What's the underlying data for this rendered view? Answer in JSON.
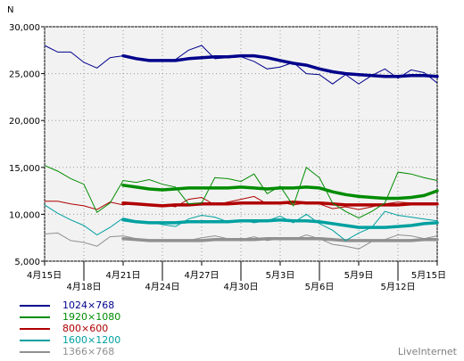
{
  "brand": "LiveInternet",
  "chart_data": {
    "type": "line",
    "ylabel": "N",
    "ylim": [
      5000,
      30000
    ],
    "yticks": [
      "5,000",
      "10,000",
      "15,000",
      "20,000",
      "25,000",
      "30,000"
    ],
    "ytick_values": [
      5000,
      10000,
      15000,
      20000,
      25000,
      30000
    ],
    "xticks": [
      {
        "label": "4月15日",
        "day": 0,
        "row": 1
      },
      {
        "label": "4月18日",
        "day": 3,
        "row": 2
      },
      {
        "label": "4月21日",
        "day": 6,
        "row": 1
      },
      {
        "label": "4月24日",
        "day": 9,
        "row": 2
      },
      {
        "label": "4月27日",
        "day": 12,
        "row": 1
      },
      {
        "label": "4月30日",
        "day": 15,
        "row": 2
      },
      {
        "label": "5月3日",
        "day": 18,
        "row": 1
      },
      {
        "label": "5月6日",
        "day": 21,
        "row": 2
      },
      {
        "label": "5月9日",
        "day": 24,
        "row": 1
      },
      {
        "label": "5月12日",
        "day": 27,
        "row": 2
      },
      {
        "label": "5月15日",
        "day": 30,
        "row": 1
      }
    ],
    "grid": true,
    "legend_position": "bottom-left",
    "series": [
      {
        "name": "1024×768",
        "color": "#00008b",
        "daily": [
          28000,
          27300,
          27300,
          26200,
          25600,
          26700,
          26900,
          26600,
          26400,
          26300,
          26500,
          27500,
          28000,
          26600,
          26700,
          26800,
          26300,
          25500,
          25700,
          26200,
          25000,
          24900,
          23900,
          24900,
          23900,
          24800,
          25500,
          24500,
          25400,
          25100,
          24000
        ],
        "avg_start": 6,
        "avg": [
          26900,
          26600,
          26400,
          26400,
          26400,
          26600,
          26700,
          26800,
          26800,
          26900,
          26900,
          26700,
          26400,
          26100,
          25900,
          25500,
          25200,
          25000,
          24900,
          24800,
          24700,
          24700,
          24800,
          24800,
          24700
        ]
      },
      {
        "name": "1920×1080",
        "color": "#008c00",
        "daily": [
          15200,
          14600,
          13800,
          13200,
          10200,
          11200,
          13600,
          13400,
          13700,
          13200,
          12900,
          11100,
          11200,
          13900,
          13800,
          13500,
          14300,
          12200,
          13000,
          10900,
          15000,
          13900,
          11200,
          10300,
          9600,
          10300,
          11200,
          14500,
          14300,
          13900,
          13600
        ],
        "avg_start": 6,
        "avg": [
          13100,
          12900,
          12700,
          12600,
          12700,
          12800,
          12800,
          12800,
          12800,
          12900,
          12800,
          12700,
          12800,
          12800,
          12900,
          12800,
          12400,
          12100,
          11900,
          11800,
          11700,
          11700,
          11800,
          12000,
          12500
        ]
      },
      {
        "name": "800×600",
        "color": "#b00000",
        "daily": [
          11400,
          11400,
          11100,
          10900,
          10500,
          11300,
          11000,
          11200,
          10900,
          11000,
          10800,
          11600,
          11800,
          11000,
          11300,
          11600,
          11900,
          11100,
          11300,
          11000,
          11200,
          11100,
          10600,
          10800,
          10500,
          10800,
          11100,
          11300,
          11200,
          11000,
          11000
        ],
        "avg_start": 6,
        "avg": [
          11200,
          11100,
          11000,
          10900,
          11000,
          11000,
          11100,
          11100,
          11100,
          11200,
          11200,
          11200,
          11200,
          11300,
          11200,
          11200,
          11100,
          11000,
          11000,
          11000,
          11000,
          11000,
          11100,
          11100,
          11100
        ]
      },
      {
        "name": "1600×1200",
        "color": "#00a0a0",
        "daily": [
          11000,
          10100,
          9400,
          8800,
          7800,
          8600,
          9600,
          9300,
          9200,
          8900,
          8700,
          9500,
          9900,
          9700,
          9200,
          9400,
          9100,
          9300,
          9800,
          9100,
          10000,
          9000,
          8300,
          7200,
          8000,
          8600,
          10300,
          9900,
          9700,
          9500,
          9300
        ],
        "avg_start": 6,
        "avg": [
          9400,
          9200,
          9100,
          9100,
          9100,
          9200,
          9200,
          9200,
          9200,
          9300,
          9300,
          9300,
          9400,
          9300,
          9300,
          9200,
          9000,
          8800,
          8600,
          8600,
          8600,
          8700,
          8800,
          9000,
          9100
        ]
      },
      {
        "name": "1366×768",
        "color": "#909090",
        "daily": [
          7900,
          8000,
          7200,
          7000,
          6600,
          7600,
          7700,
          7400,
          7100,
          7200,
          7100,
          7200,
          7500,
          7700,
          7400,
          7300,
          7600,
          7200,
          7400,
          7300,
          7800,
          7400,
          6800,
          6600,
          6300,
          7100,
          7300,
          7800,
          7700,
          7400,
          7700
        ],
        "avg_start": 6,
        "avg": [
          7400,
          7300,
          7200,
          7200,
          7200,
          7200,
          7200,
          7300,
          7300,
          7300,
          7300,
          7400,
          7400,
          7400,
          7400,
          7400,
          7300,
          7200,
          7200,
          7200,
          7200,
          7200,
          7200,
          7300,
          7300
        ]
      }
    ]
  }
}
